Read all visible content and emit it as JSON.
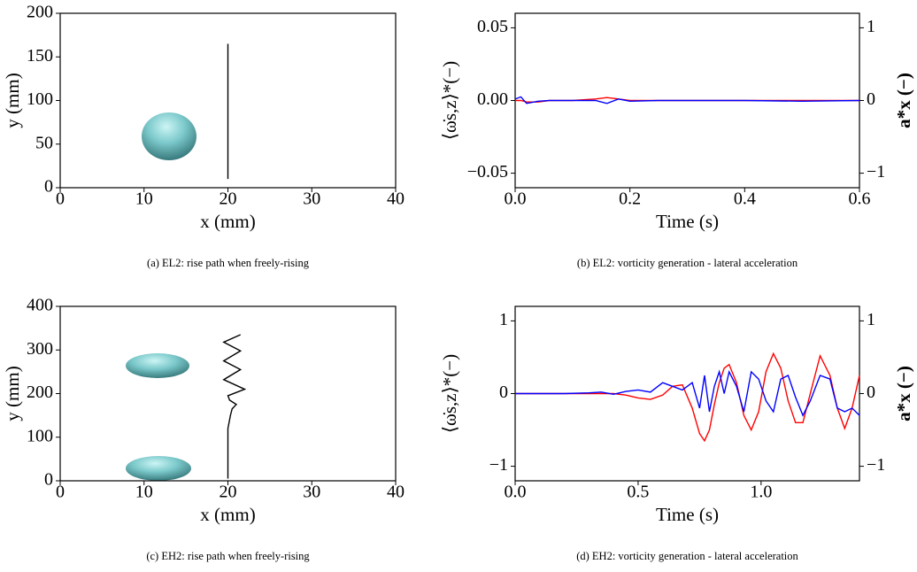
{
  "chart_data": [
    {
      "type": "line",
      "caption": "(a) EL2: rise path when freely-rising",
      "xlabel": "x (mm)",
      "ylabel": "y (mm)",
      "x": [
        20,
        20
      ],
      "values": [
        10,
        165
      ],
      "color": "#000000",
      "xlim": [
        0,
        40
      ],
      "xticks": [
        0,
        10,
        20,
        30,
        40
      ],
      "ylim": [
        0,
        200
      ],
      "yticks": [
        0,
        50,
        100,
        150,
        200
      ]
    },
    {
      "type": "line",
      "caption": "(b) EL2: vorticity generation - lateral acceleration",
      "xlabel": "Time (s)",
      "ylabel": "⟨ω̇s,z⟩*(−)",
      "y2label": "a*x (−)",
      "x": [
        0,
        0.01,
        0.02,
        0.04,
        0.06,
        0.1,
        0.14,
        0.16,
        0.18,
        0.2,
        0.25,
        0.3,
        0.4,
        0.5,
        0.6
      ],
      "series": [
        {
          "color": "#ff0000",
          "values": [
            0,
            0,
            -0.001,
            -0.001,
            0,
            0,
            0.001,
            0.002,
            0.001,
            0,
            0,
            0,
            0,
            0,
            0
          ]
        },
        {
          "color": "#0000ff",
          "axis": "y2",
          "values": [
            0.02,
            0.05,
            -0.04,
            -0.01,
            0,
            0,
            0,
            -0.04,
            0.02,
            -0.01,
            0,
            0,
            0,
            -0.01,
            0
          ]
        }
      ],
      "xlim": [
        0,
        0.6
      ],
      "xticks": [
        {
          "value": 0,
          "label": "0.0"
        },
        0.2,
        0.4,
        0.6
      ],
      "ylim": [
        -0.06,
        0.06
      ],
      "yticks": [
        {
          "value": -0.05,
          "label": "−0.05"
        },
        {
          "value": 0,
          "label": "0.00"
        },
        {
          "value": 0.05,
          "label": "0.05"
        }
      ],
      "y2lim": [
        -1.2,
        1.2
      ],
      "y2ticks": [
        {
          "value": -1,
          "label": "−1"
        },
        0,
        1
      ]
    },
    {
      "type": "line",
      "caption": "(c) EH2: rise path when freely-rising",
      "xlabel": "x (mm)",
      "ylabel": "y (mm)",
      "x": [
        20,
        20,
        20.3,
        20.5,
        21,
        20.2,
        20,
        22,
        19.5,
        21.5,
        19.5,
        21.5,
        19.5,
        21.5
      ],
      "values": [
        5,
        120,
        150,
        165,
        175,
        185,
        195,
        210,
        232,
        255,
        275,
        298,
        318,
        335
      ],
      "color": "#000000",
      "xlim": [
        0,
        40
      ],
      "xticks": [
        0,
        10,
        20,
        30,
        40
      ],
      "ylim": [
        0,
        400
      ],
      "yticks": [
        0,
        100,
        200,
        300,
        400
      ]
    },
    {
      "type": "line",
      "caption": "(d) EH2: vorticity generation - lateral acceleration",
      "xlabel": "Time (s)",
      "ylabel": "⟨ω̇s,z⟩*(−)",
      "y2label": "a*x (−)",
      "x": [
        0,
        0.1,
        0.2,
        0.3,
        0.35,
        0.4,
        0.45,
        0.5,
        0.55,
        0.6,
        0.64,
        0.68,
        0.72,
        0.75,
        0.77,
        0.79,
        0.81,
        0.83,
        0.85,
        0.87,
        0.9,
        0.93,
        0.96,
        0.99,
        1.02,
        1.05,
        1.08,
        1.11,
        1.14,
        1.17,
        1.2,
        1.24,
        1.28,
        1.31,
        1.34,
        1.37,
        1.4
      ],
      "series": [
        {
          "color": "#ff0000",
          "values": [
            0,
            0,
            0,
            0,
            0,
            0,
            -0.02,
            -0.06,
            -0.08,
            -0.02,
            0.1,
            0.12,
            -0.2,
            -0.55,
            -0.65,
            -0.5,
            -0.15,
            0.15,
            0.35,
            0.4,
            0.15,
            -0.3,
            -0.5,
            -0.25,
            0.3,
            0.55,
            0.35,
            -0.1,
            -0.4,
            -0.4,
            0,
            0.52,
            0.25,
            -0.2,
            -0.48,
            -0.2,
            0.25
          ]
        },
        {
          "color": "#0000ff",
          "axis": "y2",
          "values": [
            0,
            0,
            0,
            0.01,
            0.02,
            -0.01,
            0.03,
            0.05,
            0.02,
            0.15,
            0.1,
            0.05,
            0.15,
            -0.2,
            0.25,
            -0.25,
            0.1,
            0.3,
            0,
            0.3,
            0.1,
            -0.25,
            0.3,
            0.2,
            -0.1,
            -0.25,
            0.2,
            0.25,
            -0.05,
            -0.3,
            -0.1,
            0.25,
            0.2,
            -0.2,
            -0.25,
            -0.2,
            -0.3
          ]
        }
      ],
      "xlim": [
        0,
        1.4
      ],
      "xticks": [
        {
          "value": 0,
          "label": "0.0"
        },
        0.5,
        {
          "value": 1,
          "label": "1.0"
        }
      ],
      "ylim": [
        -1.2,
        1.2
      ],
      "yticks": [
        {
          "value": -1,
          "label": "−1"
        },
        0,
        1
      ],
      "y2lim": [
        -1.2,
        1.2
      ],
      "y2ticks": [
        {
          "value": -1,
          "label": "−1"
        },
        0,
        1
      ]
    }
  ]
}
